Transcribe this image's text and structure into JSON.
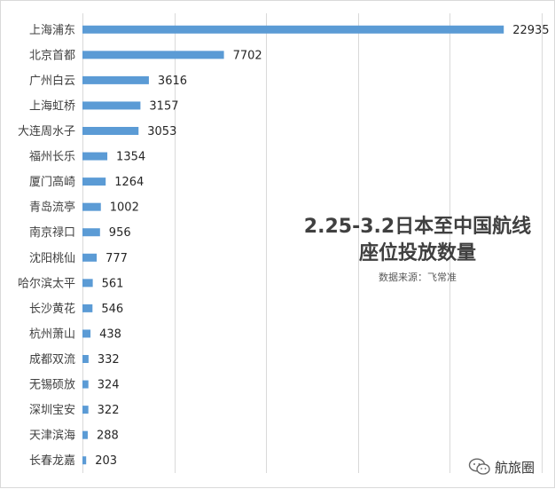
{
  "chart_data": {
    "type": "bar",
    "orientation": "horizontal",
    "title_lines": [
      "2.25-3.2日本至中国航线",
      "座位投放数量"
    ],
    "subtitle": "数据来源：飞常准",
    "categories": [
      "上海浦东",
      "北京首都",
      "广州白云",
      "上海虹桥",
      "大连周水子",
      "福州长乐",
      "厦门高崎",
      "青岛流亭",
      "南京禄口",
      "沈阳桃仙",
      "哈尔滨太平",
      "长沙黄花",
      "杭州萧山",
      "成都双流",
      "无锡硕放",
      "深圳宝安",
      "天津滨海",
      "长春龙嘉"
    ],
    "values": [
      22935,
      7702,
      3616,
      3157,
      3053,
      1354,
      1264,
      1002,
      956,
      777,
      561,
      546,
      438,
      332,
      324,
      322,
      288,
      203
    ],
    "xlim": [
      0,
      25000
    ],
    "gridlines": "vertical",
    "bar_color": "#5b9bd5",
    "data_labels": true
  },
  "watermark": {
    "icon": "wechat-icon",
    "text": "航旅圈"
  }
}
